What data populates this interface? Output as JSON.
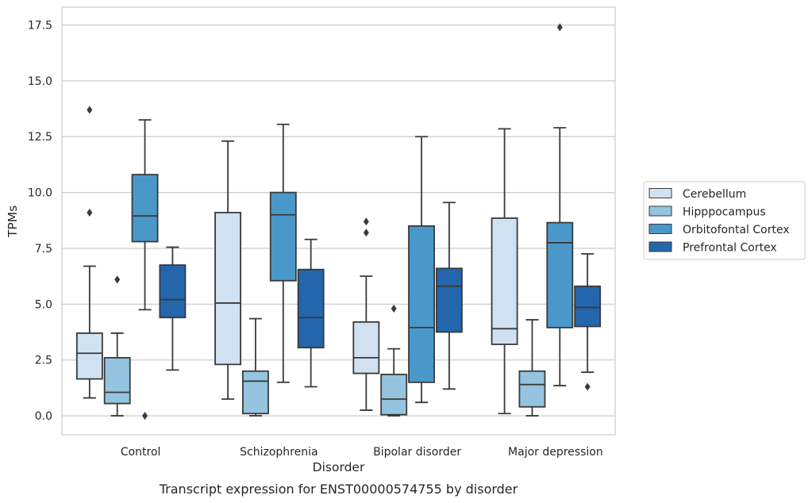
{
  "chart_data": {
    "type": "box",
    "title": "",
    "caption": "Transcript expression for ENST00000574755 by disorder",
    "xlabel": "Disorder",
    "ylabel": "TPMs",
    "ylim": [
      -0.85,
      18.3
    ],
    "yticks": [
      "0.0",
      "2.5",
      "5.0",
      "7.5",
      "10.0",
      "12.5",
      "15.0",
      "17.5"
    ],
    "grid": "horizontal",
    "legend_position": "right",
    "categories": [
      "Control",
      "Schizophrenia",
      "Bipolar disorder",
      "Major depression"
    ],
    "series": [
      {
        "name": "Cerebellum",
        "color": "#d0e1f2",
        "boxes": [
          {
            "whislo": 0.8,
            "q1": 1.65,
            "med": 2.8,
            "q3": 3.7,
            "whishi": 6.7,
            "fliers": [
              9.1,
              13.7
            ]
          },
          {
            "whislo": 0.75,
            "q1": 2.3,
            "med": 5.05,
            "q3": 9.1,
            "whishi": 12.3,
            "fliers": []
          },
          {
            "whislo": 0.25,
            "q1": 1.9,
            "med": 2.6,
            "q3": 4.2,
            "whishi": 6.25,
            "fliers": [
              8.2,
              8.7
            ]
          },
          {
            "whislo": 0.1,
            "q1": 3.2,
            "med": 3.9,
            "q3": 8.85,
            "whishi": 12.85,
            "fliers": []
          }
        ]
      },
      {
        "name": "Hipppocampus",
        "color": "#94c4df",
        "boxes": [
          {
            "whislo": 0.0,
            "q1": 0.55,
            "med": 1.05,
            "q3": 2.6,
            "whishi": 3.7,
            "fliers": [
              6.1
            ]
          },
          {
            "whislo": 0.0,
            "q1": 0.1,
            "med": 1.55,
            "q3": 2.0,
            "whishi": 4.35,
            "fliers": []
          },
          {
            "whislo": 0.0,
            "q1": 0.05,
            "med": 0.75,
            "q3": 1.85,
            "whishi": 3.0,
            "fliers": [
              4.8
            ]
          },
          {
            "whislo": 0.0,
            "q1": 0.4,
            "med": 1.4,
            "q3": 2.0,
            "whishi": 4.3,
            "fliers": []
          }
        ]
      },
      {
        "name": "Orbitofontal Cortex",
        "color": "#4a98c9",
        "boxes": [
          {
            "whislo": 4.75,
            "q1": 7.8,
            "med": 8.95,
            "q3": 10.8,
            "whishi": 13.25,
            "fliers": [
              0.0
            ]
          },
          {
            "whislo": 1.5,
            "q1": 6.05,
            "med": 9.0,
            "q3": 10.0,
            "whishi": 13.05,
            "fliers": []
          },
          {
            "whislo": 0.6,
            "q1": 1.5,
            "med": 3.95,
            "q3": 8.5,
            "whishi": 12.5,
            "fliers": []
          },
          {
            "whislo": 1.35,
            "q1": 3.95,
            "med": 7.75,
            "q3": 8.65,
            "whishi": 12.9,
            "fliers": [
              17.4
            ]
          }
        ]
      },
      {
        "name": "Prefrontal Cortex",
        "color": "#2366ac",
        "boxes": [
          {
            "whislo": 2.05,
            "q1": 4.4,
            "med": 5.2,
            "q3": 6.75,
            "whishi": 7.55,
            "fliers": []
          },
          {
            "whislo": 1.3,
            "q1": 3.05,
            "med": 4.4,
            "q3": 6.55,
            "whishi": 7.9,
            "fliers": []
          },
          {
            "whislo": 1.2,
            "q1": 3.75,
            "med": 5.8,
            "q3": 6.6,
            "whishi": 9.55,
            "fliers": []
          },
          {
            "whislo": 1.95,
            "q1": 4.0,
            "med": 4.85,
            "q3": 5.8,
            "whishi": 7.25,
            "fliers": [
              1.3
            ]
          }
        ]
      }
    ]
  }
}
